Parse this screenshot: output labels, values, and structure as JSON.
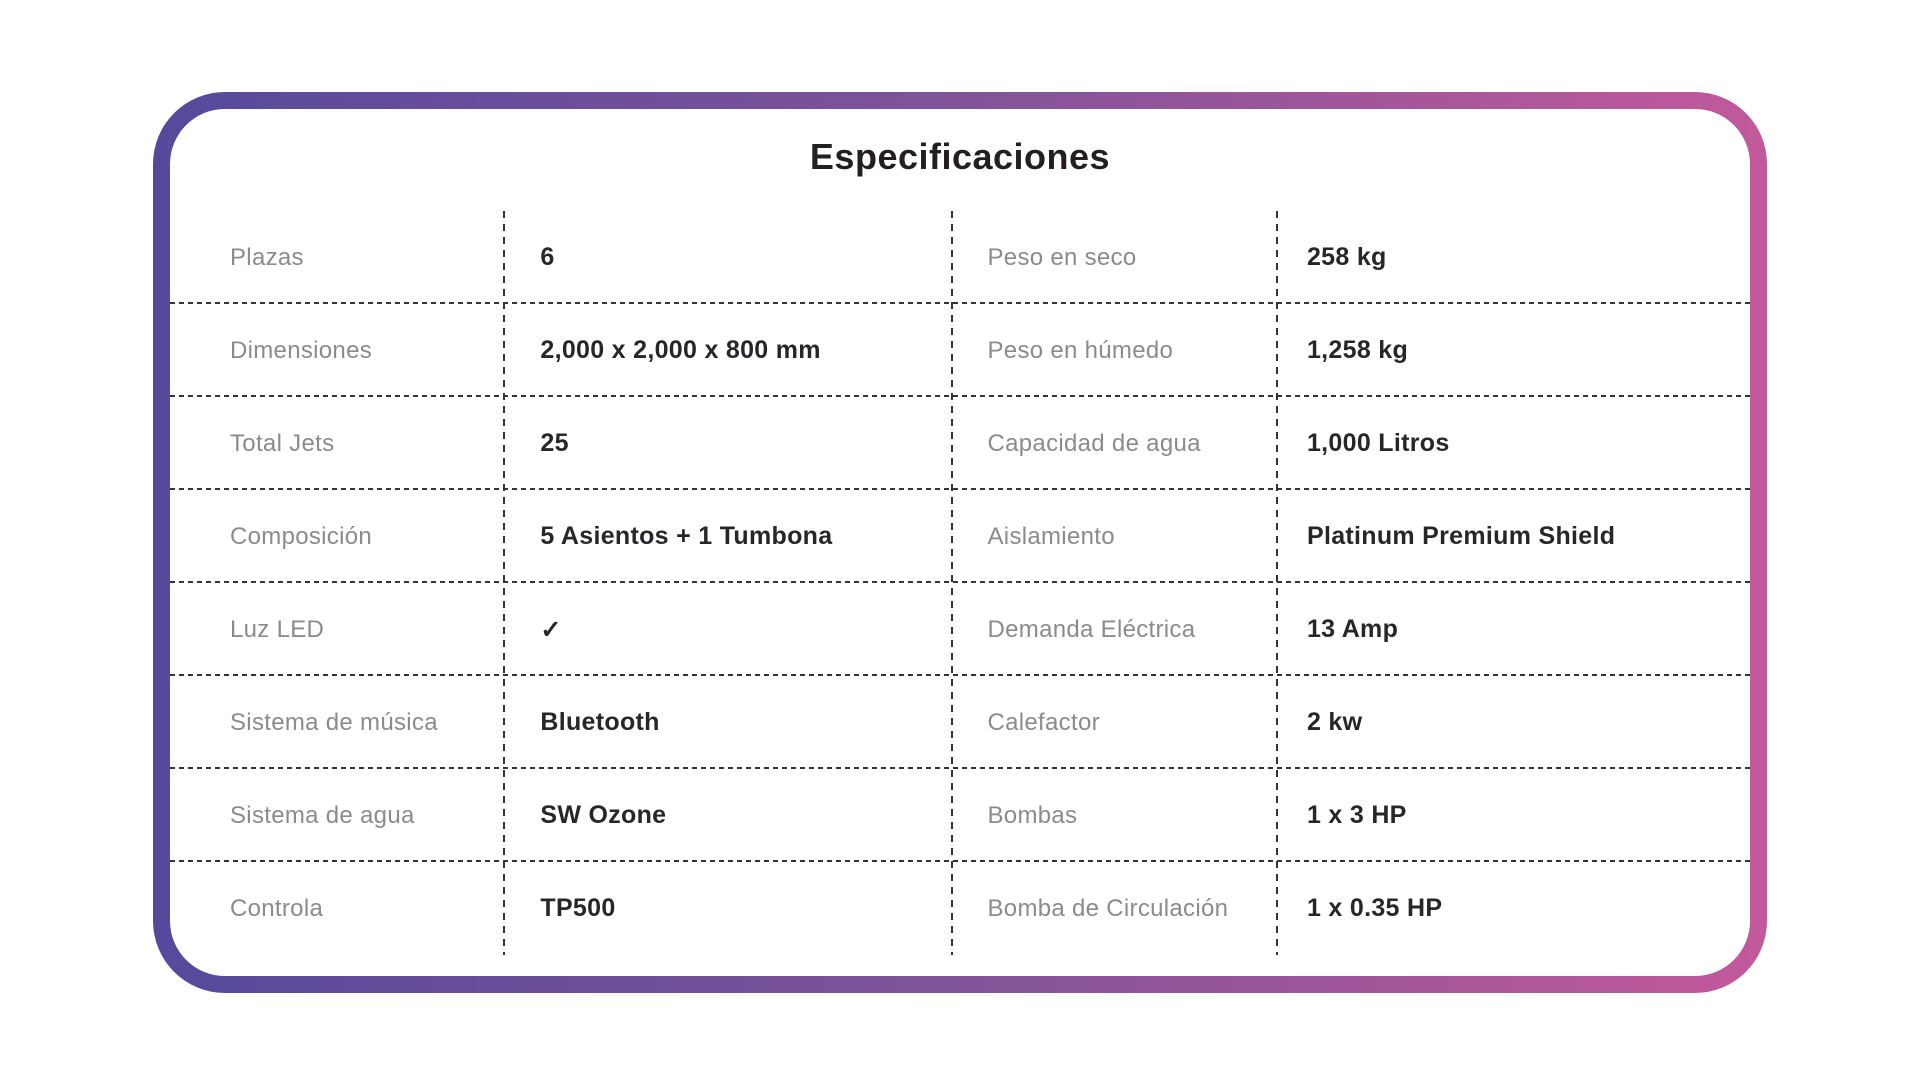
{
  "title": "Especificaciones",
  "colors": {
    "gradient_start": "#56499B",
    "gradient_mid": "#7E5399",
    "gradient_end": "#C2599B",
    "label_text": "#8B8B8E",
    "value_text": "#27272A",
    "dash": "#333333",
    "card_background": "#FFFFFF"
  },
  "table": {
    "rows": [
      {
        "left_label": "Plazas",
        "left_value": "6",
        "right_label": "Peso en seco",
        "right_value": "258 kg"
      },
      {
        "left_label": "Dimensiones",
        "left_value": "2,000 x 2,000 x 800 mm",
        "right_label": "Peso en húmedo",
        "right_value": "1,258 kg"
      },
      {
        "left_label": "Total Jets",
        "left_value": "25",
        "right_label": "Capacidad de agua",
        "right_value": "1,000 Litros"
      },
      {
        "left_label": "Composición",
        "left_value": "5 Asientos + 1 Tumbona",
        "right_label": "Aislamiento",
        "right_value": "Platinum Premium Shield"
      },
      {
        "left_label": "Luz LED",
        "left_value": "✓",
        "right_label": "Demanda Eléctrica",
        "right_value": "13 Amp"
      },
      {
        "left_label": "Sistema de música",
        "left_value": "Bluetooth",
        "right_label": "Calefactor",
        "right_value": "2 kw"
      },
      {
        "left_label": "Sistema de agua",
        "left_value": "SW Ozone",
        "right_label": "Bombas",
        "right_value": "1 x 3 HP"
      },
      {
        "left_label": "Controla",
        "left_value": "TP500",
        "right_label": "Bomba de Circulación",
        "right_value": "1 x 0.35 HP"
      }
    ]
  }
}
